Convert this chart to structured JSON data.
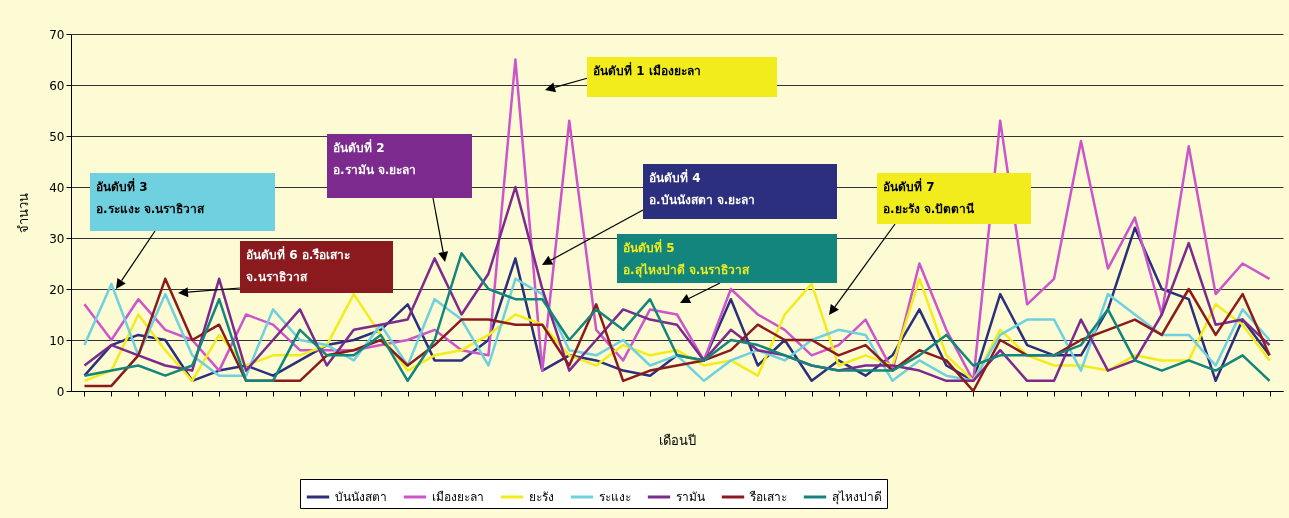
{
  "chart_data": {
    "type": "line",
    "xlabel": "เดือนปี",
    "ylabel": "จำนวน",
    "categories": [
      null,
      null,
      null,
      null,
      null,
      null,
      null,
      null,
      null,
      null,
      null,
      null,
      null,
      null,
      null,
      null,
      null,
      null,
      null,
      null,
      null,
      null,
      null,
      null,
      null,
      null,
      null,
      null,
      null,
      null,
      null,
      null,
      null,
      null,
      null,
      null,
      null,
      null,
      null,
      null,
      null,
      null,
      null,
      null,
      null
    ],
    "series": [
      {
        "name": "บันนังสตา",
        "color": "#2b2f7e",
        "values": [
          3,
          9,
          11,
          10,
          2,
          4,
          5,
          3,
          6,
          9,
          10,
          12,
          17,
          6,
          6,
          10,
          26,
          4,
          7,
          6,
          4,
          3,
          7,
          6,
          18,
          5,
          10,
          2,
          6,
          3,
          7,
          16,
          5,
          2,
          19,
          9,
          7,
          7,
          16,
          32,
          20,
          18,
          2,
          14,
          7
        ]
      },
      {
        "name": "เมืองยะลา",
        "color": "#cc55cc",
        "values": [
          17,
          10,
          18,
          12,
          10,
          4,
          15,
          13,
          8,
          8,
          8,
          9,
          10,
          12,
          8,
          7,
          65,
          4,
          53,
          12,
          6,
          16,
          15,
          6,
          20,
          15,
          12,
          7,
          9,
          14,
          4,
          25,
          12,
          2,
          53,
          17,
          22,
          49,
          24,
          34,
          15,
          48,
          19,
          25,
          22
        ]
      },
      {
        "name": "ยะรัง",
        "color": "#f2ec1c",
        "values": [
          2,
          4,
          15,
          8,
          2,
          11,
          5,
          7,
          7,
          9,
          19,
          11,
          4,
          7,
          8,
          11,
          15,
          13,
          7,
          5,
          9,
          7,
          8,
          5,
          6,
          3,
          15,
          21,
          5,
          7,
          5,
          22,
          7,
          2,
          12,
          7,
          5,
          5,
          4,
          7,
          6,
          6,
          17,
          13,
          6
        ]
      },
      {
        "name": "ระแงะ",
        "color": "#6fd0e0",
        "values": [
          9,
          21,
          7,
          19,
          7,
          3,
          3,
          16,
          10,
          9,
          6,
          13,
          5,
          18,
          14,
          5,
          22,
          19,
          8,
          7,
          10,
          5,
          7,
          2,
          6,
          8,
          6,
          10,
          12,
          11,
          2,
          6,
          3,
          2,
          11,
          14,
          14,
          4,
          19,
          15,
          11,
          11,
          5,
          16,
          10
        ]
      },
      {
        "name": "รามัน",
        "color": "#7d2a8e",
        "values": [
          5,
          9,
          7,
          5,
          4,
          22,
          4,
          10,
          16,
          5,
          12,
          13,
          14,
          26,
          15,
          23,
          40,
          20,
          4,
          10,
          16,
          14,
          13,
          6,
          12,
          8,
          7,
          5,
          4,
          5,
          5,
          4,
          2,
          2,
          8,
          2,
          2,
          14,
          4,
          6,
          15,
          29,
          13,
          14,
          9
        ]
      },
      {
        "name": "รือเสาะ",
        "color": "#8a1a1e",
        "values": [
          1,
          1,
          7,
          22,
          10,
          13,
          2,
          2,
          2,
          7,
          8,
          10,
          5,
          9,
          14,
          14,
          13,
          13,
          5,
          17,
          2,
          4,
          5,
          6,
          8,
          13,
          10,
          10,
          7,
          9,
          4,
          8,
          6,
          0,
          10,
          7,
          7,
          10,
          12,
          14,
          11,
          20,
          11,
          19,
          7
        ]
      },
      {
        "name": "สุไหงปาดี",
        "color": "#13857d",
        "values": [
          3,
          4,
          5,
          3,
          5,
          18,
          2,
          2,
          12,
          7,
          7,
          11,
          2,
          10,
          27,
          20,
          18,
          18,
          10,
          16,
          12,
          18,
          7,
          6,
          10,
          9,
          7,
          5,
          4,
          4,
          4,
          7,
          11,
          5,
          7,
          7,
          7,
          9,
          16,
          6,
          4,
          6,
          4,
          7,
          2
        ]
      }
    ],
    "ylim": [
      0,
      70
    ],
    "yticks": [
      0,
      10,
      20,
      30,
      40,
      50,
      60,
      70
    ],
    "grid": "y",
    "legend": "bottom",
    "tick_labels": "y",
    "annotations": [
      "อันดับที่ 1 เมืองยะลา",
      "อันดับที่ 2\nอ.รามัน จ.ยะลา",
      "อันดับที่ 3\nอ.ระแงะ จ.นราธิวาส",
      "อันดับที่ 4\nอ.บันนังสตา จ.ยะลา",
      "อันดับที่ 5\nอ.สุไหงปาดี จ.นราธิวาส",
      "อันดับที่ 6 อ.รือเสาะ\nจ.นราธิวาส",
      "อันดับที่ 7\nอ.ยะรัง จ.ปัตตานี"
    ]
  }
}
